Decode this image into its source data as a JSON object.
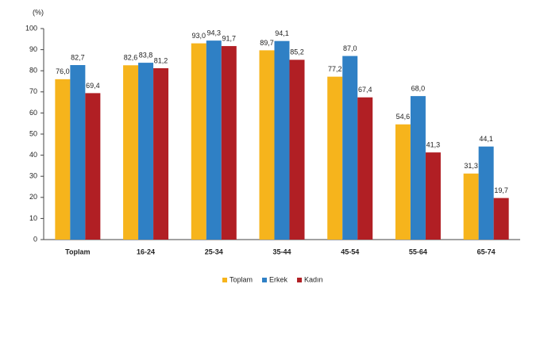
{
  "chart_data": {
    "type": "bar",
    "y_label": "(%)",
    "categories": [
      "Toplam",
      "16-24",
      "25-34",
      "35-44",
      "45-54",
      "55-64",
      "65-74"
    ],
    "series": [
      {
        "name": "Toplam",
        "color": "#f6b41c",
        "values": [
          76.0,
          82.6,
          93.0,
          89.7,
          77.2,
          54.6,
          31.3
        ],
        "value_labels": [
          "76,0",
          "82,6",
          "93,0",
          "89,7",
          "77,2",
          "54,6",
          "31,3"
        ]
      },
      {
        "name": "Erkek",
        "color": "#2f80c5",
        "values": [
          82.7,
          83.8,
          94.3,
          94.1,
          87.0,
          68.0,
          44.1
        ],
        "value_labels": [
          "82,7",
          "83,8",
          "94,3",
          "94,1",
          "87,0",
          "68,0",
          "44,1"
        ]
      },
      {
        "name": "Kadın",
        "color": "#b11f24",
        "values": [
          69.4,
          81.2,
          91.7,
          85.2,
          67.4,
          41.3,
          19.7
        ],
        "value_labels": [
          "69,4",
          "81,2",
          "91,7",
          "85,2",
          "67,4",
          "41,3",
          "19,7"
        ]
      }
    ],
    "ylim": [
      0,
      100
    ],
    "yticks": [
      0,
      10,
      20,
      30,
      40,
      50,
      60,
      70,
      80,
      90,
      100
    ],
    "grid": false,
    "legend": "bottom"
  }
}
